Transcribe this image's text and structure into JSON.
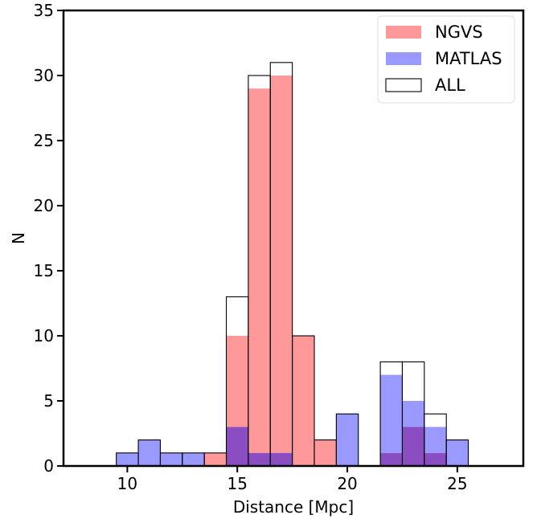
{
  "chart_data": {
    "type": "bar",
    "subtype": "histogram-overlay",
    "title": "",
    "xlabel": "Distance [Mpc]",
    "ylabel": "N",
    "xlim": [
      7.1,
      28.0
    ],
    "ylim": [
      0,
      35
    ],
    "xticks": [
      10,
      15,
      20,
      25
    ],
    "yticks": [
      0,
      5,
      10,
      15,
      20,
      25,
      30,
      35
    ],
    "grid": false,
    "legend_position": "top-right",
    "bin_edges": [
      9.5,
      10.5,
      11.5,
      12.5,
      13.5,
      14.5,
      15.5,
      16.5,
      17.5,
      18.5,
      19.5,
      20.5,
      21.5,
      22.5,
      23.5,
      24.5,
      25.5
    ],
    "series": [
      {
        "name": "NGVS",
        "style": "filled",
        "color": "#ff9999",
        "values": [
          0,
          0,
          0,
          0,
          1,
          10,
          29,
          30,
          10,
          2,
          0,
          0,
          1,
          3,
          1,
          0
        ]
      },
      {
        "name": "MATLAS",
        "style": "filled",
        "color": "#9999ff",
        "values": [
          1,
          2,
          1,
          1,
          0,
          3,
          1,
          1,
          0,
          0,
          4,
          0,
          7,
          5,
          3,
          2
        ]
      },
      {
        "name": "ALL",
        "style": "step",
        "color": "#000000",
        "values": [
          1,
          2,
          1,
          1,
          1,
          13,
          30,
          31,
          10,
          2,
          4,
          0,
          8,
          8,
          4,
          2
        ]
      }
    ],
    "overlap_color": "#8a4dc2"
  }
}
